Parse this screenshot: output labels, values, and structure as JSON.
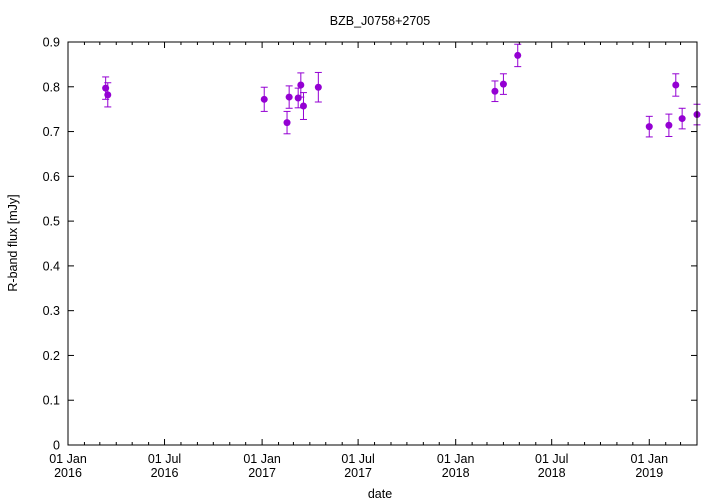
{
  "chart_data": {
    "type": "scatter",
    "title": "BZB_J0758+2705",
    "xlabel": "date",
    "ylabel": "R-band flux [mJy]",
    "xlim": [
      "2016-01-01",
      "2019-04-01"
    ],
    "ylim": [
      0,
      0.9
    ],
    "x_ticks": [
      {
        "date": "2016-01-01",
        "label": [
          "01 Jan",
          "2016"
        ]
      },
      {
        "date": "2016-07-01",
        "label": [
          "01 Jul",
          "2016"
        ]
      },
      {
        "date": "2017-01-01",
        "label": [
          "01 Jan",
          "2017"
        ]
      },
      {
        "date": "2017-07-01",
        "label": [
          "01 Jul",
          "2017"
        ]
      },
      {
        "date": "2018-01-01",
        "label": [
          "01 Jan",
          "2018"
        ]
      },
      {
        "date": "2018-07-01",
        "label": [
          "01 Jul",
          "2018"
        ]
      },
      {
        "date": "2019-01-01",
        "label": [
          "01 Jan",
          "2019"
        ]
      }
    ],
    "y_ticks": [
      "0",
      "0.1",
      "0.2",
      "0.3",
      "0.4",
      "0.5",
      "0.6",
      "0.7",
      "0.8",
      "0.9"
    ],
    "grid": false,
    "marker_color": "#9400d3",
    "series": [
      {
        "points": [
          {
            "x": "2016-03-12",
            "y": 0.797,
            "err": 0.025
          },
          {
            "x": "2016-03-16",
            "y": 0.782,
            "err": 0.027
          },
          {
            "x": "2017-01-05",
            "y": 0.772,
            "err": 0.027
          },
          {
            "x": "2017-02-17",
            "y": 0.72,
            "err": 0.025
          },
          {
            "x": "2017-02-21",
            "y": 0.777,
            "err": 0.025
          },
          {
            "x": "2017-03-10",
            "y": 0.775,
            "err": 0.022
          },
          {
            "x": "2017-03-15",
            "y": 0.804,
            "err": 0.027
          },
          {
            "x": "2017-03-20",
            "y": 0.757,
            "err": 0.03
          },
          {
            "x": "2017-04-17",
            "y": 0.799,
            "err": 0.033
          },
          {
            "x": "2018-03-16",
            "y": 0.79,
            "err": 0.023
          },
          {
            "x": "2018-04-01",
            "y": 0.806,
            "err": 0.023
          },
          {
            "x": "2018-04-28",
            "y": 0.87,
            "err": 0.025
          },
          {
            "x": "2019-01-01",
            "y": 0.711,
            "err": 0.023
          },
          {
            "x": "2019-02-07",
            "y": 0.714,
            "err": 0.025
          },
          {
            "x": "2019-02-20",
            "y": 0.804,
            "err": 0.025
          },
          {
            "x": "2019-03-04",
            "y": 0.729,
            "err": 0.023
          },
          {
            "x": "2019-04-01",
            "y": 0.738,
            "err": 0.023
          }
        ]
      }
    ]
  }
}
